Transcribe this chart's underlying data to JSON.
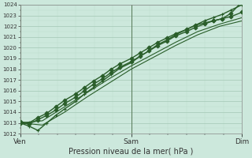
{
  "xlabel": "Pression niveau de la mer( hPa )",
  "ylim": [
    1012,
    1024
  ],
  "yticks": [
    1012,
    1013,
    1014,
    1015,
    1016,
    1017,
    1018,
    1019,
    1020,
    1021,
    1022,
    1023,
    1024
  ],
  "xtick_labels": [
    "Ven",
    "Sam",
    "Dim"
  ],
  "xtick_positions": [
    0,
    0.5,
    1.0
  ],
  "bg_color": "#cce8dc",
  "grid_major_color": "#aaccbb",
  "grid_minor_color": "#bbddcc",
  "line_color": "#2a5e2a",
  "lines": [
    {
      "x": [
        0.0,
        0.04,
        0.08,
        0.12,
        0.16,
        0.2,
        0.25,
        0.29,
        0.33,
        0.37,
        0.41,
        0.45,
        0.5,
        0.54,
        0.58,
        0.62,
        0.66,
        0.7,
        0.75,
        0.79,
        0.83,
        0.87,
        0.91,
        0.95,
        1.0
      ],
      "y": [
        1013.0,
        1012.9,
        1013.3,
        1013.7,
        1014.2,
        1014.8,
        1015.4,
        1016.0,
        1016.6,
        1017.1,
        1017.7,
        1018.2,
        1018.7,
        1019.2,
        1019.7,
        1020.2,
        1020.6,
        1021.1,
        1021.5,
        1021.9,
        1022.2,
        1022.5,
        1022.7,
        1023.2,
        1024.3
      ],
      "marker": "D",
      "markersize": 2.5,
      "lw": 1.0,
      "zorder": 5
    },
    {
      "x": [
        0.0,
        0.04,
        0.08,
        0.12,
        0.16,
        0.2,
        0.25,
        0.29,
        0.33,
        0.37,
        0.41,
        0.45,
        0.5,
        0.54,
        0.58,
        0.62,
        0.66,
        0.7,
        0.75,
        0.79,
        0.83,
        0.87,
        0.91,
        0.95,
        1.0
      ],
      "y": [
        1013.1,
        1013.0,
        1013.5,
        1013.9,
        1014.5,
        1015.1,
        1015.7,
        1016.3,
        1016.9,
        1017.4,
        1018.0,
        1018.5,
        1019.0,
        1019.5,
        1020.0,
        1020.5,
        1020.9,
        1021.3,
        1021.7,
        1022.1,
        1022.3,
        1022.5,
        1022.7,
        1022.9,
        1023.3
      ],
      "marker": "D",
      "markersize": 2.5,
      "lw": 1.0,
      "zorder": 5
    },
    {
      "x": [
        0.0,
        0.04,
        0.08,
        0.12,
        0.16,
        0.2,
        0.25,
        0.29,
        0.33,
        0.37,
        0.41,
        0.45,
        0.5,
        0.54,
        0.58,
        0.62,
        0.66,
        0.7,
        0.75,
        0.79,
        0.83,
        0.87,
        0.91,
        0.95,
        1.0
      ],
      "y": [
        1013.0,
        1012.7,
        1012.3,
        1013.0,
        1013.7,
        1014.3,
        1015.0,
        1015.7,
        1016.3,
        1016.9,
        1017.5,
        1018.1,
        1018.6,
        1019.2,
        1019.7,
        1020.3,
        1020.7,
        1021.2,
        1021.7,
        1022.1,
        1022.5,
        1022.8,
        1023.1,
        1023.5,
        1024.0
      ],
      "marker": "+",
      "markersize": 3.5,
      "lw": 1.0,
      "zorder": 4
    },
    {
      "x": [
        0.0,
        0.1,
        0.2,
        0.3,
        0.4,
        0.5,
        0.6,
        0.7,
        0.8,
        0.9,
        1.0
      ],
      "y": [
        1013.0,
        1013.2,
        1014.5,
        1015.8,
        1017.1,
        1018.3,
        1019.4,
        1020.5,
        1021.5,
        1022.2,
        1022.8
      ],
      "marker": null,
      "markersize": 0,
      "lw": 0.8,
      "zorder": 3
    },
    {
      "x": [
        0.0,
        0.1,
        0.2,
        0.3,
        0.4,
        0.5,
        0.6,
        0.7,
        0.8,
        0.9,
        1.0
      ],
      "y": [
        1013.0,
        1012.8,
        1014.0,
        1015.4,
        1016.7,
        1018.0,
        1019.1,
        1020.2,
        1021.2,
        1022.0,
        1022.5
      ],
      "marker": null,
      "markersize": 0,
      "lw": 0.8,
      "zorder": 3
    }
  ],
  "vlines": [
    0.0,
    0.5,
    1.0
  ]
}
